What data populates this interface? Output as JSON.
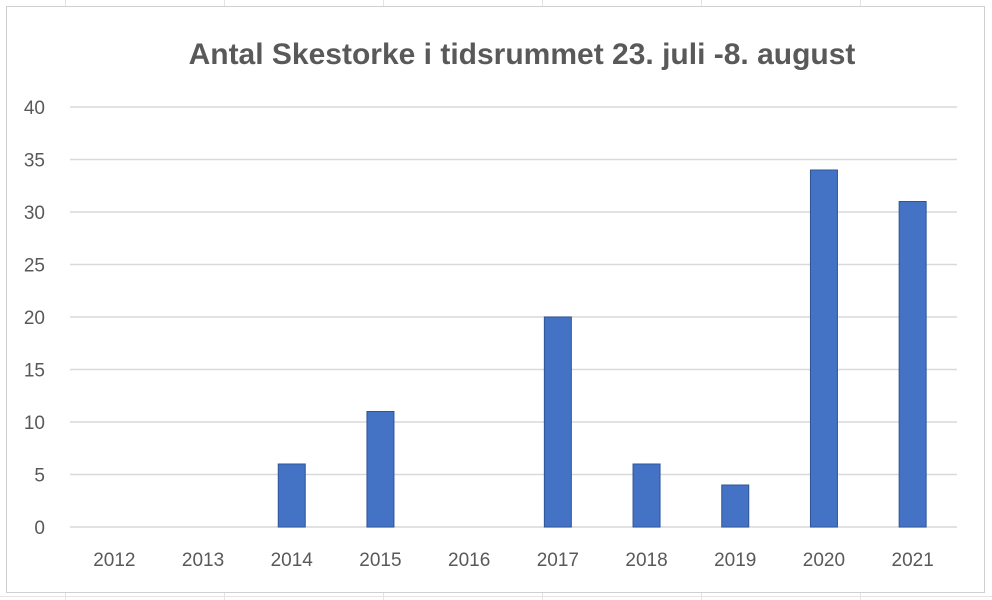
{
  "chart_data": {
    "type": "bar",
    "title": "Antal Skestorke i tidsrummet 23. juli -8. august",
    "xlabel": "",
    "ylabel": "",
    "categories": [
      "2012",
      "2013",
      "2014",
      "2015",
      "2016",
      "2017",
      "2018",
      "2019",
      "2020",
      "2021"
    ],
    "values": [
      0,
      0,
      6,
      11,
      0,
      20,
      6,
      4,
      34,
      31
    ],
    "ylim": [
      0,
      40
    ],
    "yticks": [
      0,
      5,
      10,
      15,
      20,
      25,
      30,
      35,
      40
    ],
    "grid": true,
    "legend": "none",
    "bar_color": "#4472C4",
    "grid_color": "#d9d9d9"
  }
}
